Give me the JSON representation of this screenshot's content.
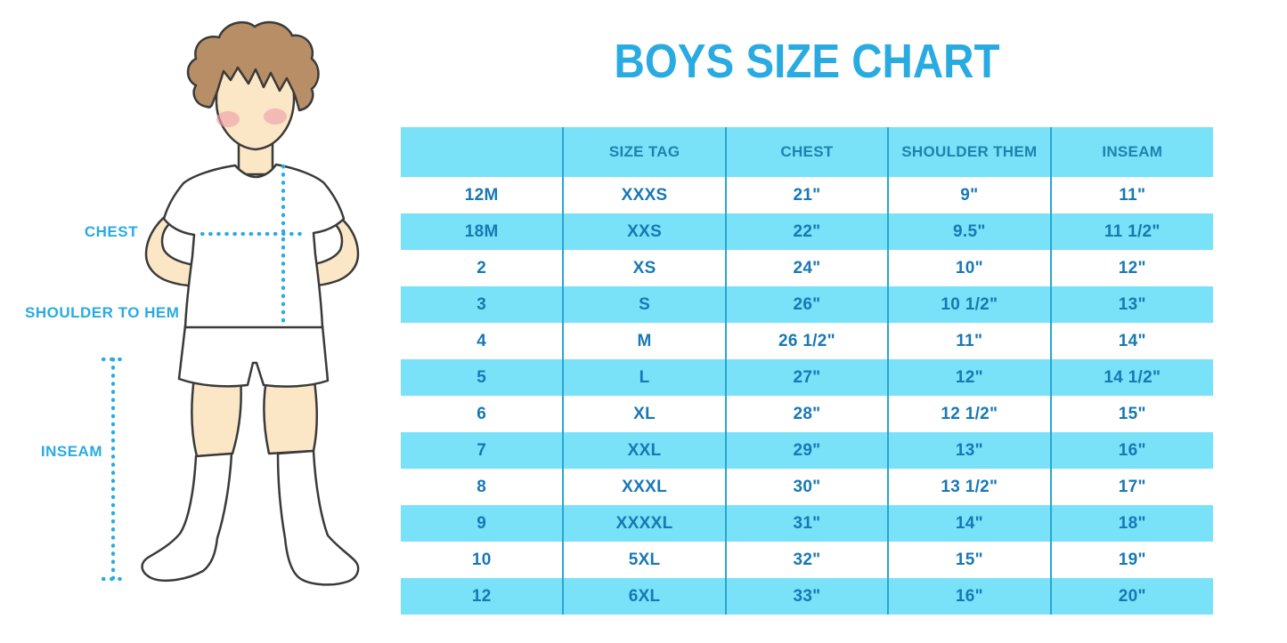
{
  "title": "BOYS SIZE CHART",
  "figure": {
    "description": "cartoon boy in white t-shirt, shorts and knee socks with measurement guides",
    "labels": {
      "chest": "CHEST",
      "shoulder_to_hem": "SHOULDER TO HEM",
      "inseam": "INSEAM"
    }
  },
  "colors": {
    "accent_blue": "#29ABE2",
    "stripe_blue": "#79E1F8",
    "divider_blue": "#2AA6CF",
    "header_text": "#1D83AE",
    "cell_text": "#1878B4",
    "skin": "#FBE7C6",
    "hair": "#B78E66",
    "blush": "#EE9FAC",
    "outline": "#3A3A3A"
  },
  "chart_data": {
    "type": "table",
    "title": "BOYS SIZE CHART",
    "columns": [
      "",
      "SIZE TAG",
      "CHEST",
      "SHOULDER THEM",
      "INSEAM"
    ],
    "rows": [
      [
        "12M",
        "XXXS",
        "21\"",
        "9\"",
        "11\""
      ],
      [
        "18M",
        "XXS",
        "22\"",
        "9.5\"",
        "11 1/2\""
      ],
      [
        "2",
        "XS",
        "24\"",
        "10\"",
        "12\""
      ],
      [
        "3",
        "S",
        "26\"",
        "10 1/2\"",
        "13\""
      ],
      [
        "4",
        "M",
        "26 1/2\"",
        "11\"",
        "14\""
      ],
      [
        "5",
        "L",
        "27\"",
        "12\"",
        "14 1/2\""
      ],
      [
        "6",
        "XL",
        "28\"",
        "12 1/2\"",
        "15\""
      ],
      [
        "7",
        "XXL",
        "29\"",
        "13\"",
        "16\""
      ],
      [
        "8",
        "XXXL",
        "30\"",
        "13 1/2\"",
        "17\""
      ],
      [
        "9",
        "XXXXL",
        "31\"",
        "14\"",
        "18\""
      ],
      [
        "10",
        "5XL",
        "32\"",
        "15\"",
        "19\""
      ],
      [
        "12",
        "6XL",
        "33\"",
        "16\"",
        "20\""
      ]
    ],
    "layout": {
      "striped": true,
      "stripe_starts_at_header": true,
      "grid": "vertical-only"
    }
  }
}
